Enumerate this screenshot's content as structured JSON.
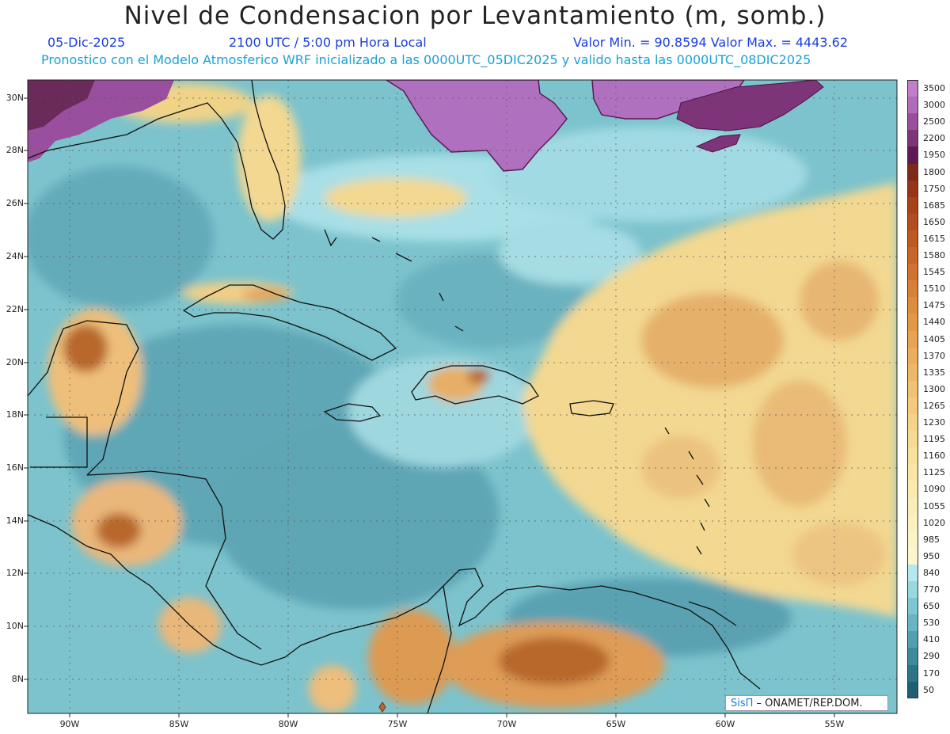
{
  "title": "Nivel de Condensacion por Levantamiento (m, somb.)",
  "header": {
    "date": "05-Dic-2025",
    "time": "2100 UTC / 5:00 pm Hora Local",
    "minmax": "Valor Min. = 90.8594   Valor Max. = 4443.62",
    "model_info": "Pronostico con el Modelo Atmosferico WRF inicializado a las 0000UTC_05DIC2025 y valido hasta las  0000UTC_08DIC2025"
  },
  "map": {
    "lat_labels": [
      "30N",
      "28N",
      "26N",
      "24N",
      "22N",
      "20N",
      "18N",
      "16N",
      "14N",
      "12N",
      "10N",
      "8N"
    ],
    "lon_labels": [
      "90W",
      "85W",
      "80W",
      "75W",
      "70W",
      "65W",
      "60W",
      "55W"
    ],
    "colors": {
      "ocean_teal": "#6fb9c6",
      "ocean_light": "#9bd6df",
      "land_yellow": "#f6df8c",
      "land_orange": "#e3a25a",
      "land_brown": "#b8682c",
      "purple": "#b070c0",
      "dark_purple": "#6a2a5a"
    }
  },
  "colorbar": {
    "labels": [
      "3500",
      "3000",
      "2500",
      "2200",
      "1950",
      "1800",
      "1750",
      "1685",
      "1650",
      "1615",
      "1580",
      "1545",
      "1510",
      "1475",
      "1440",
      "1405",
      "1370",
      "1335",
      "1300",
      "1265",
      "1230",
      "1195",
      "1160",
      "1125",
      "1090",
      "1055",
      "1020",
      "985",
      "950",
      "840",
      "770",
      "650",
      "530",
      "410",
      "290",
      "170",
      "50"
    ],
    "colors": [
      "#c27ec8",
      "#b06cb8",
      "#9a4f9e",
      "#7e3478",
      "#5e1a52",
      "#7d2a18",
      "#973518",
      "#a84219",
      "#b44d1d",
      "#bf5922",
      "#c86628",
      "#d1732e",
      "#d88036",
      "#de8c3e",
      "#e39848",
      "#e8a352",
      "#ecae5d",
      "#efb868",
      "#f2c273",
      "#f4cb7e",
      "#f6d388",
      "#f7da92",
      "#f8e19c",
      "#f9e6a6",
      "#f9eaaf",
      "#faeeb8",
      "#faf1c0",
      "#fbf4c7",
      "#fbf6cd",
      "#b6e7ee",
      "#9ad8e0",
      "#7ec7d2",
      "#67b4c2",
      "#519faf",
      "#3d8a9c",
      "#2b7587",
      "#1c6072"
    ]
  },
  "credit": {
    "sis": "SisΠ",
    "rest": " – ONAMET/REP.DOM."
  }
}
